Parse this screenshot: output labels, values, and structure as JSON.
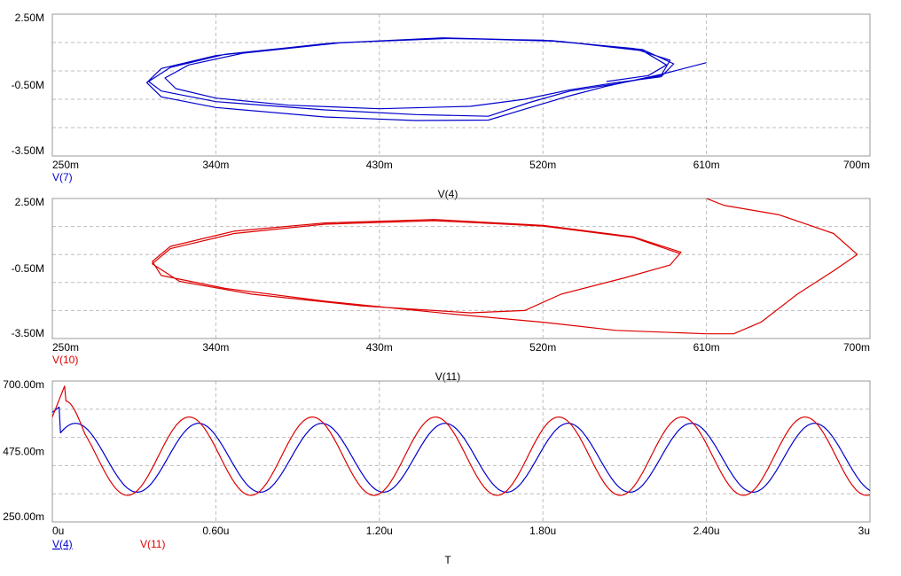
{
  "colors": {
    "blue": "#0000cc",
    "red": "#dd0000",
    "grid": "#bdbdbd",
    "frame": "#9a9a9a",
    "text": "#000000"
  },
  "chart_data": [
    {
      "type": "line",
      "title": "",
      "xlabel": "V(4)",
      "ylabel": "V(7)",
      "x_ticks": [
        "250m",
        "340m",
        "430m",
        "520m",
        "610m",
        "700m"
      ],
      "y_ticks": [
        "2.50M",
        "-0.50M",
        "-3.50M"
      ],
      "xlim": [
        0.25,
        0.7
      ],
      "ylim": [
        -3.5,
        2.5
      ],
      "grid": true,
      "series": [
        {
          "name": "V(7)",
          "color": "#0000cc",
          "points": [
            [
              0.61,
              0.45
            ],
            [
              0.585,
              -0.05
            ],
            [
              0.555,
              -0.55
            ],
            [
              0.535,
              -0.95
            ],
            [
              0.513,
              -1.45
            ],
            [
              0.49,
              -1.98
            ],
            [
              0.45,
              -2.0
            ],
            [
              0.4,
              -1.85
            ],
            [
              0.34,
              -1.45
            ],
            [
              0.31,
              -1.0
            ],
            [
              0.302,
              -0.4
            ],
            [
              0.31,
              0.2
            ],
            [
              0.34,
              0.75
            ],
            [
              0.4,
              1.25
            ],
            [
              0.46,
              1.48
            ],
            [
              0.52,
              1.4
            ],
            [
              0.57,
              1.05
            ],
            [
              0.59,
              0.55
            ],
            [
              0.585,
              -0.1
            ],
            [
              0.56,
              -0.45
            ],
            [
              0.535,
              -0.75
            ],
            [
              0.512,
              -1.25
            ],
            [
              0.49,
              -1.82
            ],
            [
              0.45,
              -1.75
            ],
            [
              0.4,
              -1.55
            ],
            [
              0.34,
              -1.2
            ],
            [
              0.31,
              -0.75
            ],
            [
              0.303,
              -0.35
            ],
            [
              0.315,
              0.25
            ],
            [
              0.345,
              0.8
            ],
            [
              0.405,
              1.28
            ],
            [
              0.465,
              1.5
            ],
            [
              0.525,
              1.38
            ],
            [
              0.575,
              1.0
            ],
            [
              0.592,
              0.4
            ],
            [
              0.585,
              -0.15
            ],
            [
              0.56,
              -0.4
            ],
            [
              0.535,
              -0.7
            ],
            [
              0.51,
              -1.1
            ],
            [
              0.48,
              -1.4
            ],
            [
              0.43,
              -1.5
            ],
            [
              0.38,
              -1.35
            ],
            [
              0.34,
              -1.05
            ],
            [
              0.318,
              -0.65
            ],
            [
              0.312,
              -0.2
            ],
            [
              0.325,
              0.35
            ],
            [
              0.355,
              0.85
            ],
            [
              0.41,
              1.3
            ],
            [
              0.47,
              1.48
            ],
            [
              0.53,
              1.35
            ],
            [
              0.575,
              0.95
            ],
            [
              0.588,
              0.35
            ],
            [
              0.578,
              -0.1
            ],
            [
              0.555,
              -0.35
            ]
          ]
        }
      ]
    },
    {
      "type": "line",
      "title": "",
      "xlabel": "V(11)",
      "ylabel": "V(10)",
      "x_ticks": [
        "250m",
        "340m",
        "430m",
        "520m",
        "610m",
        "700m"
      ],
      "y_ticks": [
        "2.50M",
        "-0.50M",
        "-3.50M"
      ],
      "xlim": [
        0.25,
        0.7
      ],
      "ylim": [
        -3.5,
        2.5
      ],
      "grid": true,
      "series": [
        {
          "name": "V(10)",
          "color": "#dd0000",
          "points": [
            [
              0.61,
              2.5
            ],
            [
              0.62,
              2.2
            ],
            [
              0.65,
              1.8
            ],
            [
              0.68,
              1.0
            ],
            [
              0.693,
              0.1
            ],
            [
              0.68,
              -0.6
            ],
            [
              0.66,
              -1.6
            ],
            [
              0.64,
              -2.8
            ],
            [
              0.625,
              -3.3
            ],
            [
              0.61,
              -3.3
            ],
            [
              0.56,
              -3.15
            ],
            [
              0.52,
              -2.8
            ],
            [
              0.47,
              -2.45
            ],
            [
              0.4,
              -1.9
            ],
            [
              0.345,
              -1.35
            ],
            [
              0.31,
              -0.8
            ],
            [
              0.305,
              -0.2
            ],
            [
              0.315,
              0.45
            ],
            [
              0.35,
              1.1
            ],
            [
              0.4,
              1.45
            ],
            [
              0.46,
              1.6
            ],
            [
              0.52,
              1.35
            ],
            [
              0.57,
              0.85
            ],
            [
              0.596,
              0.2
            ],
            [
              0.59,
              -0.35
            ],
            [
              0.565,
              -0.9
            ],
            [
              0.53,
              -1.6
            ],
            [
              0.51,
              -2.3
            ],
            [
              0.48,
              -2.4
            ],
            [
              0.42,
              -2.1
            ],
            [
              0.36,
              -1.6
            ],
            [
              0.32,
              -1.05
            ],
            [
              0.305,
              -0.3
            ],
            [
              0.315,
              0.35
            ],
            [
              0.35,
              1.0
            ],
            [
              0.4,
              1.4
            ],
            [
              0.46,
              1.55
            ],
            [
              0.52,
              1.32
            ],
            [
              0.57,
              0.82
            ],
            [
              0.595,
              0.15
            ]
          ]
        }
      ]
    },
    {
      "type": "line",
      "title": "",
      "xlabel": "T",
      "ylabel": "",
      "x_ticks": [
        "0u",
        "0.60u",
        "1.20u",
        "1.80u",
        "2.40u",
        "3u"
      ],
      "y_ticks": [
        "700.00m",
        "475.00m",
        "250.00m"
      ],
      "xlim": [
        0,
        3
      ],
      "ylim": [
        0.25,
        0.7
      ],
      "grid": true,
      "series": [
        {
          "name": "V(4)",
          "color": "#0000cc",
          "points": []
        },
        {
          "name": "V(11)",
          "color": "#dd0000",
          "points": []
        }
      ]
    }
  ]
}
